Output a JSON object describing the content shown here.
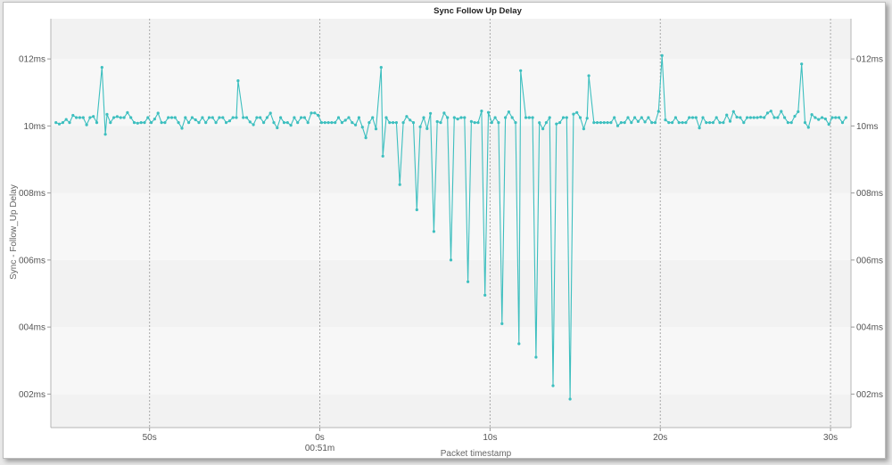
{
  "chart_data": {
    "type": "line",
    "title": "Sync Follow Up Delay",
    "xlabel": "Packet timestamp",
    "ylabel": "Sync - Follow_Up Delay",
    "x_unit": "seconds relative to 00:51m",
    "x_ticks": [
      {
        "value": -10,
        "label": "50s",
        "sublabel": ""
      },
      {
        "value": 0,
        "label": "0s",
        "sublabel": "00:51m"
      },
      {
        "value": 10,
        "label": "10s",
        "sublabel": ""
      },
      {
        "value": 20,
        "label": "20s",
        "sublabel": ""
      },
      {
        "value": 30,
        "label": "30s",
        "sublabel": ""
      }
    ],
    "y_ticks": [
      {
        "value": 2,
        "label": "002ms"
      },
      {
        "value": 4,
        "label": "004ms"
      },
      {
        "value": 6,
        "label": "006ms"
      },
      {
        "value": 8,
        "label": "008ms"
      },
      {
        "value": 10,
        "label": "10ms"
      },
      {
        "value": 12,
        "label": "012ms"
      }
    ],
    "xlim": [
      -15.8,
      31.2
    ],
    "ylim": [
      1.0,
      13.2
    ],
    "grid": true,
    "legend": "none",
    "series_color": "#3dbfbf",
    "series": [
      {
        "spikes": [
          [
            -12.8,
            11.75
          ],
          [
            -4.8,
            11.35
          ],
          [
            3.6,
            11.75
          ],
          [
            11.8,
            11.65
          ],
          [
            15.8,
            11.5
          ],
          [
            20.1,
            12.1
          ],
          [
            28.3,
            11.85
          ],
          [
            -12.6,
            9.75
          ],
          [
            2.7,
            9.65
          ],
          [
            3.7,
            9.1
          ],
          [
            4.7,
            8.25
          ],
          [
            5.7,
            7.5
          ],
          [
            6.7,
            6.85
          ],
          [
            7.7,
            6.0
          ],
          [
            8.7,
            5.35
          ],
          [
            9.7,
            4.95
          ],
          [
            10.7,
            4.1
          ],
          [
            11.7,
            3.5
          ],
          [
            12.7,
            3.1
          ],
          [
            13.7,
            2.25
          ],
          [
            14.7,
            1.85
          ]
        ],
        "baseline": 10.1,
        "baseline_range": [
          9.9,
          10.45
        ],
        "sample_interval": 0.2,
        "x_range": [
          -15.5,
          31.0
        ]
      }
    ]
  }
}
